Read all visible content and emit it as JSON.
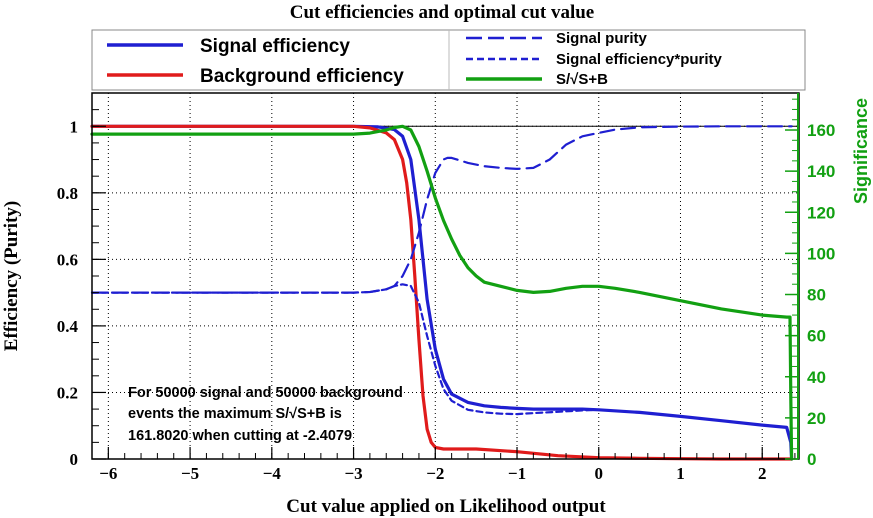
{
  "chart_data": {
    "type": "line",
    "title": "Cut efficiencies and optimal cut value",
    "xlabel": "Cut value applied on Likelihood output",
    "ylabel": "Efficiency (Purity)",
    "y2label": "Significance",
    "xlim": [
      -6.2,
      2.45
    ],
    "ylim": [
      0,
      1.1
    ],
    "y2lim": [
      0,
      178
    ],
    "x_ticks": [
      -6,
      -5,
      -4,
      -3,
      -2,
      -1,
      0,
      1,
      2
    ],
    "x_tick_labels": [
      "−6",
      "−5",
      "−4",
      "−3",
      "−2",
      "−1",
      "0",
      "1",
      "2"
    ],
    "y_ticks": [
      0,
      0.2,
      0.4,
      0.6,
      0.8,
      1
    ],
    "y_tick_labels": [
      "0",
      "0.2",
      "0.4",
      "0.6",
      "0.8",
      "1"
    ],
    "y2_ticks": [
      0,
      20,
      40,
      60,
      80,
      100,
      120,
      140,
      160
    ],
    "y2_tick_labels": [
      "0",
      "20",
      "40",
      "60",
      "80",
      "100",
      "120",
      "140",
      "160"
    ],
    "grid": true,
    "colors": {
      "signal": "#1f1fd1",
      "background": "#e01b1b",
      "significance": "#12a012",
      "frame": "#000000"
    },
    "series": [
      {
        "name": "Signal efficiency",
        "axis": "left",
        "color": "#1f1fd1",
        "style": "solid",
        "x": [
          -6.2,
          -3.0,
          -2.7,
          -2.5,
          -2.4,
          -2.3,
          -2.2,
          -2.1,
          -2.0,
          -1.9,
          -1.8,
          -1.6,
          -1.4,
          -1.2,
          -1.0,
          -0.8,
          -0.5,
          -0.2,
          0.0,
          0.5,
          1.0,
          1.5,
          2.0,
          2.3,
          2.35,
          2.36
        ],
        "y": [
          1.0,
          1.0,
          0.998,
          0.99,
          0.97,
          0.9,
          0.72,
          0.48,
          0.33,
          0.24,
          0.195,
          0.17,
          0.16,
          0.155,
          0.152,
          0.15,
          0.15,
          0.15,
          0.148,
          0.14,
          0.128,
          0.115,
          0.102,
          0.095,
          0.05,
          0.0
        ]
      },
      {
        "name": "Background efficiency",
        "axis": "left",
        "color": "#e01b1b",
        "style": "solid",
        "x": [
          -6.2,
          -3.0,
          -2.8,
          -2.6,
          -2.5,
          -2.4,
          -2.35,
          -2.3,
          -2.25,
          -2.2,
          -2.15,
          -2.1,
          -2.05,
          -2.0,
          -1.9,
          -1.8,
          -1.5,
          -1.0,
          -0.5,
          0.0,
          0.5,
          1.0,
          1.5,
          2.0,
          2.36
        ],
        "y": [
          1.0,
          1.0,
          0.995,
          0.98,
          0.96,
          0.9,
          0.83,
          0.72,
          0.55,
          0.36,
          0.19,
          0.09,
          0.05,
          0.035,
          0.03,
          0.03,
          0.03,
          0.022,
          0.01,
          0.004,
          0.002,
          0.001,
          0.0,
          0.0,
          0.0
        ]
      },
      {
        "name": "Signal purity",
        "axis": "left",
        "color": "#1f1fd1",
        "style": "long-dash",
        "x": [
          -6.2,
          -3.5,
          -3.0,
          -2.8,
          -2.6,
          -2.5,
          -2.4,
          -2.3,
          -2.2,
          -2.1,
          -2.0,
          -1.9,
          -1.85,
          -1.8,
          -1.6,
          -1.4,
          -1.2,
          -1.0,
          -0.8,
          -0.6,
          -0.4,
          -0.2,
          0.0,
          0.2,
          0.5,
          1.0,
          1.5,
          2.0,
          2.36
        ],
        "y": [
          0.5,
          0.5,
          0.5,
          0.502,
          0.51,
          0.52,
          0.55,
          0.6,
          0.68,
          0.78,
          0.86,
          0.9,
          0.905,
          0.905,
          0.89,
          0.88,
          0.875,
          0.872,
          0.875,
          0.9,
          0.945,
          0.97,
          0.98,
          0.99,
          0.997,
          0.999,
          1.0,
          1.0,
          1.0
        ]
      },
      {
        "name": "Signal efficiency*purity",
        "axis": "left",
        "color": "#1f1fd1",
        "style": "short-dash",
        "x": [
          -6.2,
          -3.0,
          -2.8,
          -2.6,
          -2.5,
          -2.4,
          -2.3,
          -2.2,
          -2.1,
          -2.0,
          -1.9,
          -1.8,
          -1.6,
          -1.4,
          -1.2,
          -1.0,
          -0.8,
          -0.5,
          -0.2,
          0.0,
          0.5,
          1.0,
          1.5,
          2.0,
          2.3,
          2.35,
          2.36
        ],
        "y": [
          0.5,
          0.5,
          0.502,
          0.51,
          0.52,
          0.525,
          0.52,
          0.47,
          0.37,
          0.28,
          0.21,
          0.175,
          0.148,
          0.14,
          0.136,
          0.135,
          0.138,
          0.142,
          0.146,
          0.148,
          0.14,
          0.128,
          0.115,
          0.102,
          0.095,
          0.05,
          0.0
        ]
      },
      {
        "name": "S/√S+B",
        "axis": "right",
        "color": "#12a012",
        "style": "solid",
        "x": [
          -6.2,
          -3.0,
          -2.8,
          -2.6,
          -2.5,
          -2.4,
          -2.3,
          -2.2,
          -2.1,
          -2.0,
          -1.9,
          -1.8,
          -1.7,
          -1.6,
          -1.5,
          -1.4,
          -1.2,
          -1.0,
          -0.8,
          -0.6,
          -0.4,
          -0.2,
          0.0,
          0.2,
          0.5,
          1.0,
          1.5,
          2.0,
          2.3,
          2.34,
          2.35,
          2.36
        ],
        "y": [
          158,
          158,
          158.5,
          160,
          161.2,
          161.8,
          160,
          152,
          140,
          127,
          116,
          107,
          99,
          93,
          89,
          86,
          84,
          82,
          81,
          81.5,
          83,
          84,
          84,
          83,
          81,
          77,
          73,
          70,
          69,
          69,
          30,
          0
        ]
      }
    ],
    "legend": {
      "location": "top",
      "entries": [
        "Signal efficiency",
        "Background efficiency",
        "Signal purity",
        "Signal efficiency*purity",
        "S/√S+B"
      ]
    },
    "annotation": {
      "lines": [
        "For 50000 signal and 50000 background",
        "events the maximum S/√S+B is",
        "161.8020 when cutting at -2.4079"
      ]
    },
    "reference_line_y": 1.0
  }
}
